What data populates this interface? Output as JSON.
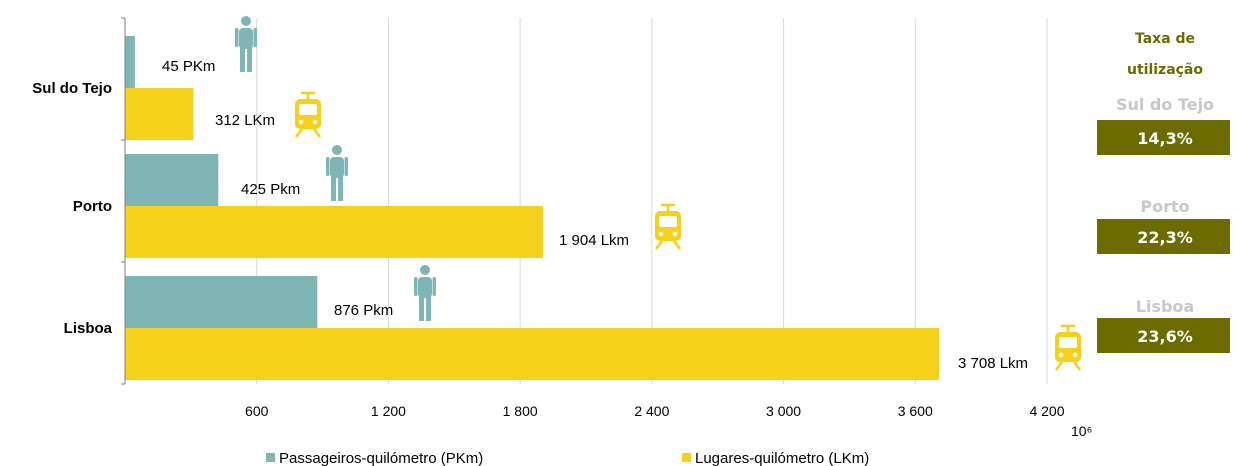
{
  "chart_data": {
    "type": "bar",
    "orientation": "horizontal",
    "categories": [
      "Sul do Tejo",
      "Porto",
      "Lisboa"
    ],
    "series": [
      {
        "name": "Passageiros-quilómetro (PKm)",
        "color": "#7fb5b5",
        "values": [
          45,
          425,
          876
        ],
        "labels": [
          "45 PKm",
          "425 Pkm",
          "876 Pkm"
        ],
        "icon": "person-icon"
      },
      {
        "name": "Lugares-quilómetro (LKm)",
        "color": "#f5d11b",
        "values": [
          312,
          1904,
          3708
        ],
        "labels": [
          "312 LKm",
          "1 904 Lkm",
          "3 708 Lkm"
        ],
        "icon": "tram-icon"
      }
    ],
    "x_ticks": [
      600,
      1200,
      1800,
      2400,
      3000,
      3600,
      4200
    ],
    "x_tick_labels": [
      "600",
      "1 200",
      "1 800",
      "2 400",
      "3 000",
      "3 600",
      "4 200"
    ],
    "xlim": [
      0,
      4200
    ],
    "x_unit": "10⁶",
    "grid": true,
    "legend_position": "bottom"
  },
  "side_panel": {
    "title_line1": "Taxa de",
    "title_line2": "utilização",
    "title_color": "#6b6b00",
    "region_color": "#c8c8c8",
    "box_color": "#6b6b00",
    "items": [
      {
        "region": "Sul do Tejo",
        "value": "14,3%"
      },
      {
        "region": "Porto",
        "value": "22,3%"
      },
      {
        "region": "Lisboa",
        "value": "23,6%"
      }
    ]
  }
}
